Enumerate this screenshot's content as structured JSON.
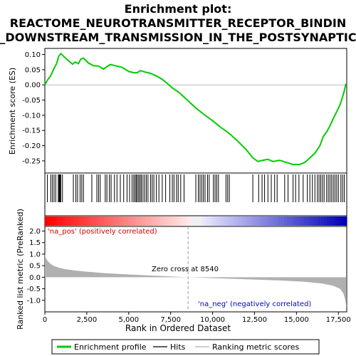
{
  "chart_data": {
    "type": "line",
    "title_lines": [
      "Enrichment plot:",
      "REACTOME_NEUROTRANSMITTER_RECEPTOR_BINDIN",
      "_DOWNSTREAM_TRANSMISSION_IN_THE_POSTSYNAPTIC"
    ],
    "top_panel": {
      "ylabel": "Enrichment score (ES)",
      "ylim": [
        -0.29,
        0.12
      ],
      "yticks": [
        0.1,
        0.05,
        0.0,
        -0.05,
        -0.1,
        -0.15,
        -0.2,
        -0.25
      ],
      "ytick_labels": [
        "0.10",
        "0.05",
        "0.00",
        "-0.05",
        "-0.10",
        "-0.15",
        "-0.20",
        "-0.25"
      ],
      "series_name": "Enrichment profile",
      "line_color": "#00cc00",
      "es_profile": [
        [
          0,
          0.0
        ],
        [
          150,
          0.015
        ],
        [
          350,
          0.03
        ],
        [
          550,
          0.055
        ],
        [
          700,
          0.07
        ],
        [
          830,
          0.095
        ],
        [
          950,
          0.103
        ],
        [
          1100,
          0.095
        ],
        [
          1400,
          0.08
        ],
        [
          1650,
          0.068
        ],
        [
          1800,
          0.075
        ],
        [
          2000,
          0.07
        ],
        [
          2150,
          0.085
        ],
        [
          2300,
          0.088
        ],
        [
          2600,
          0.072
        ],
        [
          2900,
          0.063
        ],
        [
          3200,
          0.062
        ],
        [
          3500,
          0.052
        ],
        [
          3700,
          0.06
        ],
        [
          3900,
          0.067
        ],
        [
          4200,
          0.063
        ],
        [
          4600,
          0.058
        ],
        [
          5000,
          0.044
        ],
        [
          5300,
          0.04
        ],
        [
          5500,
          0.04
        ],
        [
          5700,
          0.047
        ],
        [
          6000,
          0.042
        ],
        [
          6300,
          0.038
        ],
        [
          6700,
          0.028
        ],
        [
          7000,
          0.018
        ],
        [
          7300,
          0.005
        ],
        [
          7600,
          -0.01
        ],
        [
          8000,
          -0.025
        ],
        [
          8500,
          -0.05
        ],
        [
          9000,
          -0.076
        ],
        [
          9500,
          -0.098
        ],
        [
          10000,
          -0.118
        ],
        [
          10500,
          -0.14
        ],
        [
          11000,
          -0.16
        ],
        [
          11500,
          -0.185
        ],
        [
          12000,
          -0.213
        ],
        [
          12400,
          -0.24
        ],
        [
          12700,
          -0.252
        ],
        [
          13000,
          -0.248
        ],
        [
          13300,
          -0.245
        ],
        [
          13600,
          -0.252
        ],
        [
          14000,
          -0.248
        ],
        [
          14400,
          -0.255
        ],
        [
          14800,
          -0.262
        ],
        [
          15200,
          -0.262
        ],
        [
          15500,
          -0.255
        ],
        [
          15800,
          -0.24
        ],
        [
          16100,
          -0.225
        ],
        [
          16400,
          -0.2
        ],
        [
          16600,
          -0.17
        ],
        [
          16800,
          -0.155
        ],
        [
          17000,
          -0.135
        ],
        [
          17200,
          -0.11
        ],
        [
          17400,
          -0.088
        ],
        [
          17600,
          -0.065
        ],
        [
          17750,
          -0.04
        ],
        [
          17850,
          -0.02
        ],
        [
          17950,
          0.003
        ]
      ],
      "hit_positions": [
        150,
        350,
        450,
        550,
        650,
        800,
        850,
        880,
        920,
        950,
        1050,
        1700,
        1850,
        1950,
        2100,
        2200,
        2300,
        2800,
        3100,
        3200,
        3300,
        3600,
        3700,
        3850,
        3950,
        4150,
        4300,
        4500,
        4700,
        4900,
        5050,
        5200,
        5300,
        5380,
        5450,
        5520,
        5600,
        5680,
        5750,
        5850,
        5950,
        6050,
        6150,
        6300,
        6400,
        6500,
        6650,
        6800,
        7000,
        7200,
        7450,
        7600,
        7700,
        7850,
        7950,
        8100,
        8300,
        9000,
        9150,
        9250,
        9350,
        9450,
        9550,
        9700,
        9800,
        10050,
        10150,
        10250,
        10350,
        10800,
        10900,
        11000,
        12400,
        12750,
        12950,
        13100,
        13300,
        13500,
        13700,
        13850,
        14300,
        14500,
        14800,
        14950,
        15150,
        15400,
        15650,
        15800,
        15950,
        16100,
        16250,
        16350,
        16450,
        16550,
        16650,
        16800,
        16900,
        17000,
        17100,
        17200,
        17300,
        17400,
        17500,
        17650,
        17750,
        17850
      ]
    },
    "bottom_panel": {
      "ylabel": "Ranked list metric (PreRanked)",
      "ylim": [
        -1.5,
        2.2
      ],
      "yticks": [
        2.0,
        1.5,
        1.0,
        0.5,
        0.0,
        -0.5,
        -1.0
      ],
      "ytick_labels": [
        "2.0",
        "1.5",
        "1.0",
        "0.5",
        "0.0",
        "-0.5",
        "-1.0"
      ],
      "fill_color": "#b0b0b0",
      "metric_profile": [
        [
          0,
          1.0
        ],
        [
          50,
          0.85
        ],
        [
          150,
          0.72
        ],
        [
          300,
          0.6
        ],
        [
          500,
          0.5
        ],
        [
          800,
          0.42
        ],
        [
          1200,
          0.35
        ],
        [
          1800,
          0.29
        ],
        [
          2500,
          0.24
        ],
        [
          3500,
          0.18
        ],
        [
          5000,
          0.12
        ],
        [
          6500,
          0.07
        ],
        [
          8540,
          0.0
        ],
        [
          10000,
          -0.04
        ],
        [
          12000,
          -0.09
        ],
        [
          14000,
          -0.14
        ],
        [
          15500,
          -0.2
        ],
        [
          16500,
          -0.27
        ],
        [
          17200,
          -0.37
        ],
        [
          17600,
          -0.5
        ],
        [
          17800,
          -0.7
        ],
        [
          17900,
          -0.95
        ],
        [
          17950,
          -1.15
        ],
        [
          17990,
          -1.3
        ]
      ],
      "label_positive": "'na_pos' (positively correlated)",
      "label_negative": "'na_neg' (negatively correlated)",
      "zero_cross_label": "Zero cross at 8540",
      "zero_cross": 8540
    },
    "xlabel": "Rank in Ordered Dataset",
    "xlim": [
      0,
      18000
    ],
    "xticks": [
      0,
      2500,
      5000,
      7500,
      10000,
      12500,
      15000,
      17500
    ],
    "xtick_labels": [
      "0",
      "2,500",
      "5,000",
      "7,500",
      "10,000",
      "12,500",
      "15,000",
      "17,500"
    ],
    "legend": {
      "placement": "bottom",
      "entries": [
        "Enrichment profile",
        "Hits",
        "Ranking metric scores"
      ],
      "colors": [
        "#00cc00",
        "#000000",
        "#b0b0b0"
      ]
    }
  }
}
